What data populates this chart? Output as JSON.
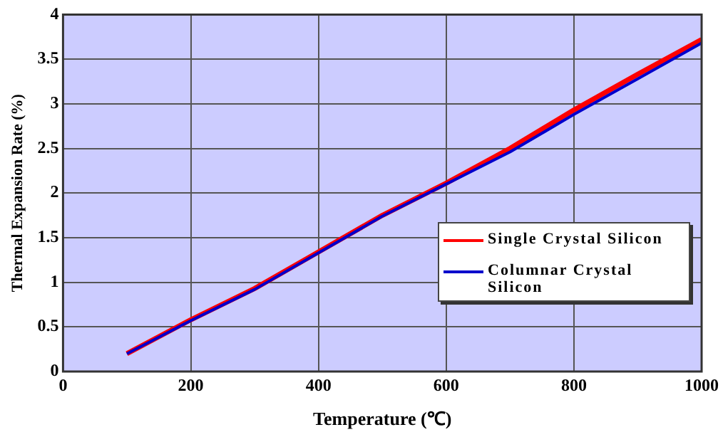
{
  "chart_data": {
    "type": "line",
    "xlabel": "Temperature (℃)",
    "ylabel": "Thermal Expansion Rate (%)",
    "x": [
      100,
      200,
      300,
      400,
      500,
      600,
      700,
      800,
      900,
      1000
    ],
    "series": [
      {
        "name": "Single Crystal Silicon",
        "color": "#ff0000",
        "values": [
          0.2,
          0.58,
          0.93,
          1.34,
          1.75,
          2.11,
          2.5,
          2.93,
          3.33,
          3.72
        ]
      },
      {
        "name": "Columnar Crystal Silicon",
        "color": "#0000cc",
        "values": [
          0.2,
          0.57,
          0.92,
          1.33,
          1.74,
          2.1,
          2.46,
          2.88,
          3.28,
          3.68
        ]
      }
    ],
    "xlim": [
      0,
      1000
    ],
    "xticks": [
      0,
      200,
      400,
      600,
      800,
      1000
    ],
    "ylim": [
      0,
      4
    ],
    "yticks": [
      0,
      0.5,
      1,
      1.5,
      2,
      2.5,
      3,
      3.5,
      4
    ],
    "grid": true,
    "legend": "right",
    "marker": "none",
    "line_style": "solid"
  }
}
